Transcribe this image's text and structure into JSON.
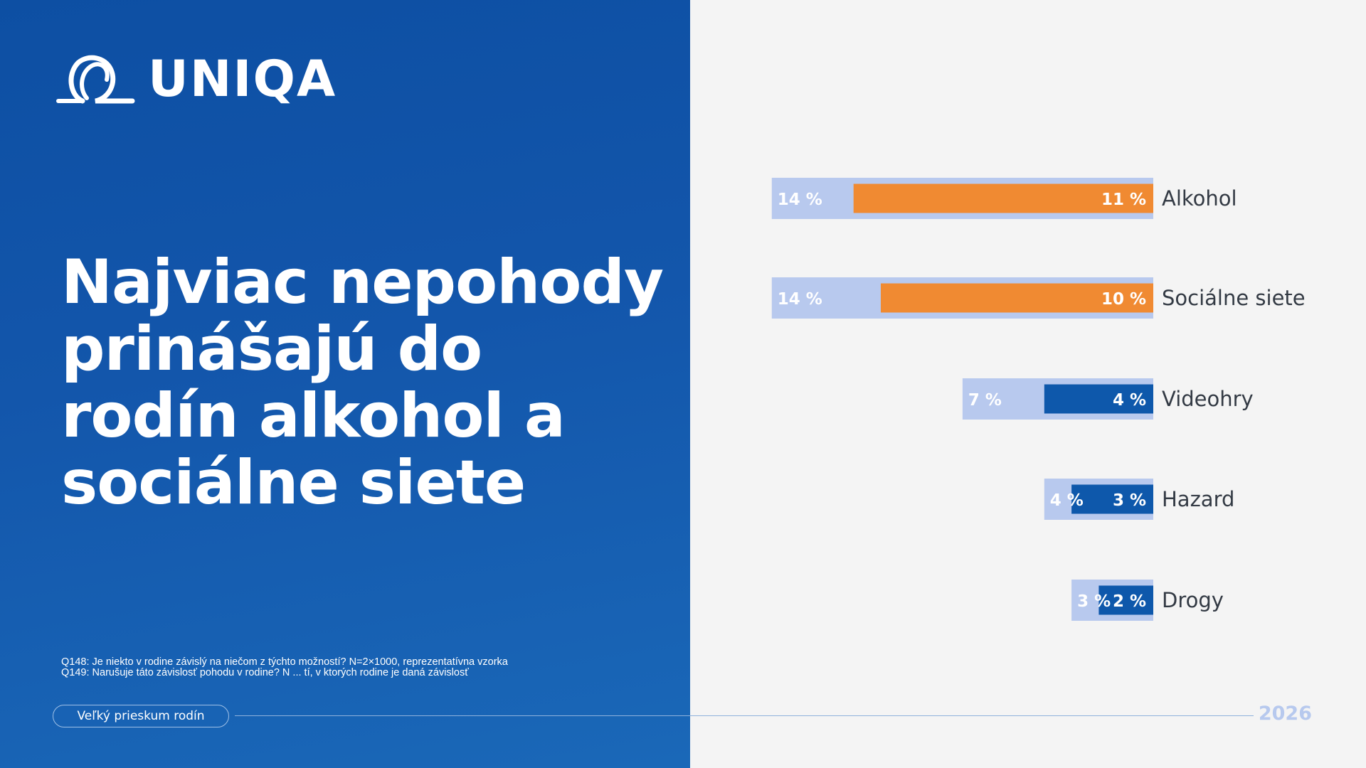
{
  "brand": {
    "name": "UNIQA"
  },
  "headline": "Najviac nepohody prinášajú do rodín alkohol a sociálne siete",
  "footnotes": [
    "Q148: Je niekto v rodine závislý na niečom z týchto možností? N=2×1000, reprezentatívna vzorka",
    "Q149: Narušuje táto závislosť pohodu v rodine? N ... tí, v ktorých rodine je daná závislosť"
  ],
  "footer": {
    "survey_label": "Veľký prieskum rodín",
    "year": "2026"
  },
  "colors": {
    "panel_blue": "#1356ab",
    "bar_light": "#b8c9ee",
    "bar_orange": "#f08a32",
    "bar_blue": "#0e58ab"
  },
  "chart_data": {
    "type": "bar",
    "orientation": "horizontal",
    "categories": [
      "Alkohol",
      "Sociálne siete",
      "Videohry",
      "Hazard",
      "Drogy"
    ],
    "series": [
      {
        "values": [
          14,
          14,
          7,
          4,
          3
        ],
        "labels": [
          "14 %",
          "14 %",
          "7 %",
          "4 %",
          "3 %"
        ]
      },
      {
        "values": [
          11,
          10,
          4,
          3,
          2
        ],
        "labels": [
          "11 %",
          "10 %",
          "4 %",
          "3 %",
          "2 %"
        ]
      }
    ],
    "highlight_colors": [
      "#f08a32",
      "#f08a32",
      "#0e58ab",
      "#0e58ab",
      "#0e58ab"
    ]
  }
}
